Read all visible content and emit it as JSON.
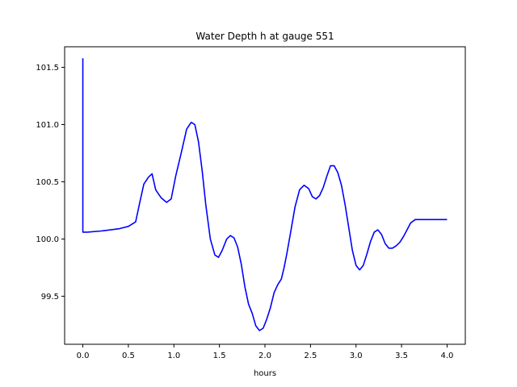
{
  "chart_data": {
    "type": "line",
    "title": "Water Depth h at gauge 551",
    "xlabel": "hours",
    "ylabel": "",
    "xlim": [
      -0.2,
      4.2
    ],
    "ylim": [
      99.08,
      101.68
    ],
    "xticks": [
      0.0,
      0.5,
      1.0,
      1.5,
      2.0,
      2.5,
      3.0,
      3.5,
      4.0
    ],
    "xtick_labels": [
      "0.0",
      "0.5",
      "1.0",
      "1.5",
      "2.0",
      "2.5",
      "3.0",
      "3.5",
      "4.0"
    ],
    "yticks": [
      99.5,
      100.0,
      100.5,
      101.0,
      101.5
    ],
    "ytick_labels": [
      "99.5",
      "100.0",
      "100.5",
      "101.0",
      "101.5"
    ],
    "grid": false,
    "series": [
      {
        "color": "#0000ff",
        "x": [
          0.0,
          0.0,
          0.05,
          0.2,
          0.4,
          0.5,
          0.58,
          0.62,
          0.67,
          0.72,
          0.76,
          0.8,
          0.86,
          0.92,
          0.97,
          1.02,
          1.08,
          1.14,
          1.19,
          1.23,
          1.27,
          1.31,
          1.35,
          1.4,
          1.45,
          1.49,
          1.53,
          1.58,
          1.62,
          1.66,
          1.7,
          1.74,
          1.78,
          1.82,
          1.86,
          1.9,
          1.94,
          1.98,
          2.02,
          2.06,
          2.1,
          2.14,
          2.18,
          2.21,
          2.24,
          2.28,
          2.33,
          2.38,
          2.43,
          2.48,
          2.52,
          2.56,
          2.6,
          2.64,
          2.68,
          2.72,
          2.76,
          2.8,
          2.84,
          2.88,
          2.92,
          2.96,
          3.0,
          3.04,
          3.08,
          3.12,
          3.16,
          3.2,
          3.24,
          3.28,
          3.32,
          3.36,
          3.4,
          3.44,
          3.48,
          3.52,
          3.56,
          3.6,
          3.65,
          3.7,
          3.75,
          3.8,
          3.85,
          3.9,
          3.95,
          3.98,
          4.0
        ],
        "y": [
          101.58,
          100.06,
          100.06,
          100.07,
          100.09,
          100.11,
          100.15,
          100.3,
          100.48,
          100.54,
          100.57,
          100.43,
          100.36,
          100.32,
          100.35,
          100.55,
          100.75,
          100.96,
          101.02,
          101.0,
          100.85,
          100.6,
          100.3,
          100.0,
          99.86,
          99.84,
          99.9,
          100.0,
          100.03,
          100.01,
          99.93,
          99.78,
          99.58,
          99.43,
          99.35,
          99.24,
          99.2,
          99.22,
          99.3,
          99.4,
          99.53,
          99.6,
          99.65,
          99.75,
          99.87,
          100.05,
          100.28,
          100.43,
          100.47,
          100.44,
          100.37,
          100.35,
          100.38,
          100.45,
          100.55,
          100.64,
          100.64,
          100.58,
          100.47,
          100.3,
          100.1,
          99.9,
          99.77,
          99.73,
          99.77,
          99.87,
          99.98,
          100.06,
          100.08,
          100.04,
          99.96,
          99.92,
          99.92,
          99.94,
          99.97,
          100.02,
          100.08,
          100.14,
          100.17,
          100.17,
          100.17,
          100.17,
          100.17,
          100.17,
          100.17,
          100.17,
          100.17
        ]
      }
    ]
  }
}
